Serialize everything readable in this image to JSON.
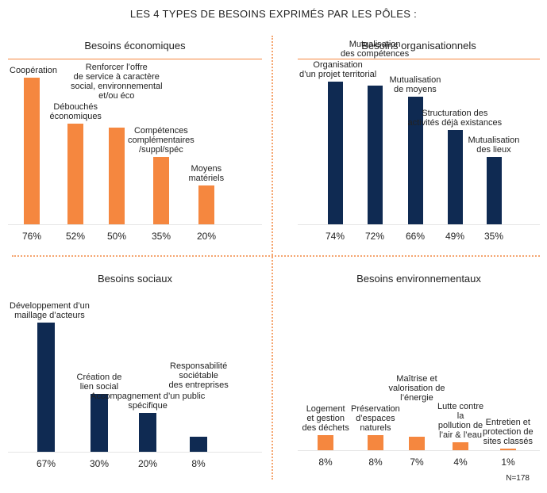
{
  "title": "LES 4 TYPES DE BESOINS EXPRIMÉS PAR LES PÔLES :",
  "footnote": "N=178",
  "chart_data": [
    {
      "type": "bar",
      "title": "Besoins économiques",
      "color": "#f5873f",
      "categories": [
        "Coopération",
        "Débouchés\néconomiques",
        "Renforcer l’offre\nde service à caractère\nsocial, environnemental\net/ou éco",
        "Compétences\ncomplémentaires\n/suppl/spéc",
        "Moyens\nmatériels"
      ],
      "values": [
        76,
        52,
        50,
        35,
        20
      ],
      "value_labels": [
        "76%",
        "52%",
        "50%",
        "35%",
        "20%"
      ]
    },
    {
      "type": "bar",
      "title": "Besoins organisationnels",
      "color": "#0f2a52",
      "categories": [
        "Organisation\nd’un projet territorial",
        "Mutualisation\ndes compétences",
        "Mutualisation\nde moyens",
        "Structuration des\nactivités déjà existances",
        "Mutualisation\ndes lieux"
      ],
      "values": [
        74,
        72,
        66,
        49,
        35
      ],
      "value_labels": [
        "74%",
        "72%",
        "66%",
        "49%",
        "35%"
      ]
    },
    {
      "type": "bar",
      "title": "Besoins sociaux",
      "color": "#0f2a52",
      "categories": [
        "Développement d’un\nmaillage d’acteurs",
        "Création de\nlien social",
        "Accompagnement d’un public\nspécifique",
        "Responsabilité\nsociétable\ndes entreprises"
      ],
      "values": [
        67,
        30,
        20,
        8
      ],
      "value_labels": [
        "67%",
        "30%",
        "20%",
        "8%"
      ]
    },
    {
      "type": "bar",
      "title": "Besoins environnementaux",
      "color": "#f5873f",
      "categories": [
        "Logement\net gestion\ndes déchets",
        "Préservation\nd’espaces\nnaturels",
        "Maîtrise et\nvalorisation de\nl’énergie",
        "Lutte contre\nla\npollution de\nl’air & l’eau",
        "Entretien et\nprotection de\nsites classés"
      ],
      "values": [
        8,
        8,
        7,
        4,
        1
      ],
      "value_labels": [
        "8%",
        "8%",
        "7%",
        "4%",
        "1%"
      ]
    }
  ]
}
